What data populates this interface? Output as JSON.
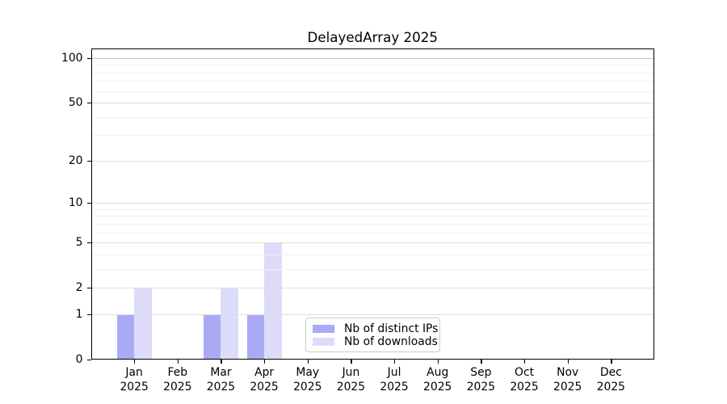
{
  "chart_data": {
    "type": "bar",
    "title": "DelayedArray 2025",
    "categories": [
      "Jan",
      "Feb",
      "Mar",
      "Apr",
      "May",
      "Jun",
      "Jul",
      "Aug",
      "Sep",
      "Oct",
      "Nov",
      "Dec"
    ],
    "category_year": "2025",
    "series": [
      {
        "name": "Nb of distinct IPs",
        "color": "#a9a9f4",
        "values": [
          1,
          0,
          1,
          1,
          0,
          0,
          0,
          0,
          0,
          0,
          0,
          0
        ]
      },
      {
        "name": "Nb of downloads",
        "color": "#dcdcfa",
        "values": [
          2,
          0,
          2,
          5,
          0,
          0,
          0,
          0,
          0,
          0,
          0,
          0
        ]
      }
    ],
    "xlabel": "",
    "ylabel": "",
    "yscale": "log1p",
    "ylim": [
      0,
      116
    ],
    "yticks_major": [
      0,
      1,
      2,
      5,
      10,
      20,
      50,
      100
    ],
    "yticks_minor": [
      3,
      4,
      6,
      7,
      8,
      9,
      30,
      40,
      60,
      70,
      80,
      90
    ],
    "grid": true,
    "legend_position": "lower center",
    "colors": {
      "grid_major": "#dedede",
      "grid_minor": "#f0f0f0",
      "grid_hundred": "#c5c5c5",
      "spine": "#000000",
      "text": "#000000"
    }
  }
}
